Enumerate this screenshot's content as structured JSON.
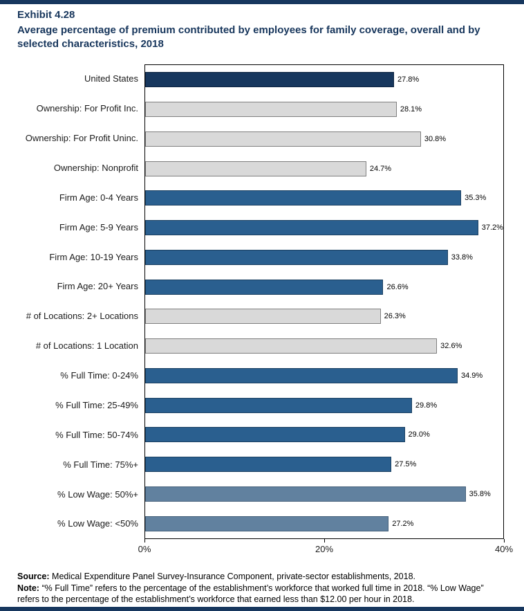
{
  "page": {
    "accent_color": "#17375e"
  },
  "header": {
    "exhibit_label": "Exhibit 4.28",
    "title": "Average percentage of premium contributed by employees for family coverage, overall and by selected characteristics, 2018"
  },
  "chart_data": {
    "type": "bar",
    "orientation": "horizontal",
    "title": "Average percentage of premium contributed by employees for family coverage, overall and by selected characteristics, 2018",
    "categories": [
      "United States",
      "Ownership: For Profit Inc.",
      "Ownership: For Profit Uninc.",
      "Ownership: Nonprofit",
      "Firm Age: 0-4 Years",
      "Firm Age: 5-9 Years",
      "Firm Age: 10-19 Years",
      "Firm Age: 20+ Years",
      "# of Locations: 2+ Locations",
      "# of Locations: 1 Location",
      "% Full Time: 0-24%",
      "% Full Time: 25-49%",
      "% Full Time: 50-74%",
      "% Full Time: 75%+",
      "% Low Wage: 50%+",
      "% Low Wage: <50%"
    ],
    "values": [
      27.8,
      28.1,
      30.8,
      24.7,
      35.3,
      37.2,
      33.8,
      26.6,
      26.3,
      32.6,
      34.9,
      29.8,
      29.0,
      27.5,
      35.8,
      27.2
    ],
    "value_labels": [
      "27.8%",
      "28.1%",
      "30.8%",
      "24.7%",
      "35.3%",
      "37.2%",
      "33.8%",
      "26.6%",
      "26.3%",
      "32.6%",
      "34.9%",
      "29.8%",
      "29.0%",
      "27.5%",
      "35.8%",
      "27.2%"
    ],
    "bar_groups": [
      "navy",
      "gray",
      "gray",
      "gray",
      "blue",
      "blue",
      "blue",
      "blue",
      "gray",
      "gray",
      "blue",
      "blue",
      "blue",
      "blue",
      "steel",
      "steel"
    ],
    "colors": {
      "navy": {
        "fill": "#17375e",
        "border": "#0e2440"
      },
      "gray": {
        "fill": "#d9d9d9",
        "border": "#7f7f7f"
      },
      "blue": {
        "fill": "#2a5f8f",
        "border": "#1b4062"
      },
      "steel": {
        "fill": "#61819f",
        "border": "#45607a"
      }
    },
    "xlim": [
      0,
      40
    ],
    "x_ticks": [
      {
        "label": "0%",
        "value": 0
      },
      {
        "label": "20%",
        "value": 20
      },
      {
        "label": "40%",
        "value": 40
      }
    ],
    "grid": false,
    "legend": false
  },
  "footer": {
    "source_label": "Source:",
    "source_text": "Medical Expenditure Panel Survey-Insurance Component, private-sector establishments, 2018.",
    "note_label": "Note:",
    "note_text": "“% Full Time” refers to the percentage of the establishment’s workforce that worked full time in 2018. “% Low Wage” refers to the percentage of the establishment’s workforce that earned less than $12.00 per hour in 2018."
  }
}
